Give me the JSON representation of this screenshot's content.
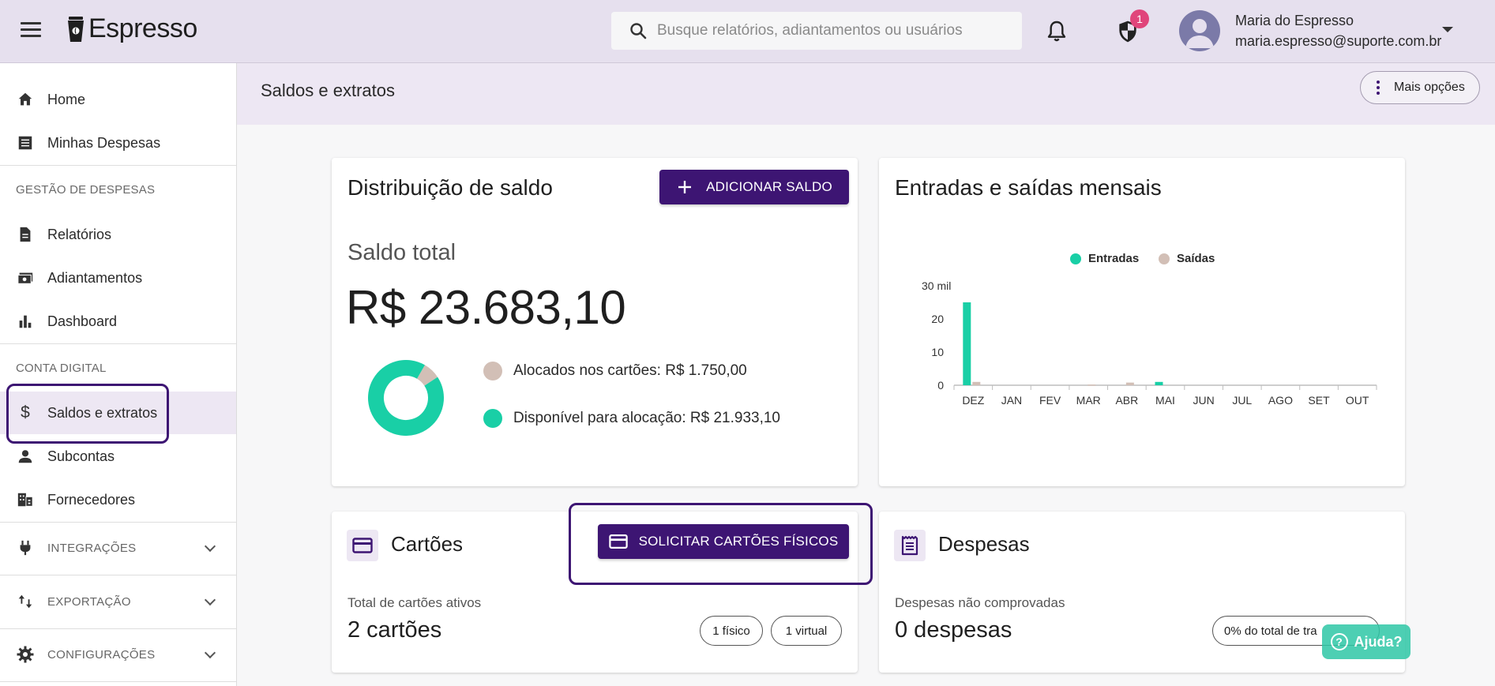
{
  "app": {
    "name": "Espresso"
  },
  "search": {
    "placeholder": "Busque relatórios, adiantamentos ou usuários"
  },
  "notifications": {
    "security_badge": "1"
  },
  "user": {
    "name": "Maria do Espresso",
    "email": "maria.espresso@suporte.com.br"
  },
  "sidebar": {
    "items": [
      {
        "label": "Home",
        "icon": "home-icon"
      },
      {
        "label": "Minhas Despesas",
        "icon": "receipt-icon"
      }
    ],
    "section_gestao": "GESTÃO DE DESPESAS",
    "gestao_items": [
      {
        "label": "Relatórios",
        "icon": "document-icon"
      },
      {
        "label": "Adiantamentos",
        "icon": "money-icon"
      },
      {
        "label": "Dashboard",
        "icon": "bar-chart-icon"
      }
    ],
    "section_conta": "CONTA DIGITAL",
    "conta_items": [
      {
        "label": "Saldos e extratos",
        "icon": "dollar-icon",
        "active": true
      },
      {
        "label": "Subcontas",
        "icon": "person-icon"
      },
      {
        "label": "Fornecedores",
        "icon": "building-icon"
      }
    ],
    "expandables": [
      {
        "label": "INTEGRAÇÕES",
        "icon": "plug-icon"
      },
      {
        "label": "EXPORTAÇÃO",
        "icon": "swap-vertical-icon"
      },
      {
        "label": "CONFIGURAÇÕES",
        "icon": "gear-icon"
      }
    ]
  },
  "header": {
    "title": "Saldos e extratos",
    "more_options": "Mais opções"
  },
  "distribuicao": {
    "title": "Distribuição de saldo",
    "add_button": "ADICIONAR SALDO",
    "saldo_label": "Saldo total",
    "saldo_value": "R$ 23.683,10",
    "legend": [
      {
        "label": "Alocados nos cartões: R$ 1.750,00",
        "color": "#d2bfb6",
        "amount": 1750.0
      },
      {
        "label": "Disponível para alocação: R$ 21.933,10",
        "color": "#19cfa6",
        "amount": 21933.1
      }
    ]
  },
  "entradas": {
    "title": "Entradas e saídas mensais",
    "colors": {
      "entradas": "#19cfa6",
      "saidas": "#d2bfb6"
    },
    "chart_data": {
      "type": "bar",
      "title": "Entradas e saídas mensais",
      "categories": [
        "DEZ",
        "JAN",
        "FEV",
        "MAR",
        "ABR",
        "MAI",
        "JUN",
        "JUL",
        "AGO",
        "SET",
        "OUT"
      ],
      "series": [
        {
          "name": "Entradas",
          "values": [
            25,
            0,
            0,
            0,
            0,
            1,
            0,
            0,
            0,
            0,
            0
          ]
        },
        {
          "name": "Saídas",
          "values": [
            1,
            0,
            0,
            0.2,
            0.8,
            0,
            0,
            0,
            0,
            0,
            0
          ]
        }
      ],
      "y_ticks": [
        "0",
        "10",
        "20",
        "30 mil"
      ],
      "y_tick_values": [
        0,
        10,
        20,
        30
      ],
      "ylim": [
        0,
        30
      ],
      "legend_position": "top-center"
    }
  },
  "cartoes": {
    "title": "Cartões",
    "button": "SOLICITAR CARTÕES FÍSICOS",
    "label": "Total de cartões ativos",
    "count": "2 cartões",
    "pill_fisico": "1 físico",
    "pill_virtual": "1 virtual"
  },
  "despesas": {
    "title": "Despesas",
    "label": "Despesas não comprovadas",
    "count": "0 despesas",
    "pill": "0% do total de tra"
  },
  "help": {
    "label": "Ajuda?"
  }
}
